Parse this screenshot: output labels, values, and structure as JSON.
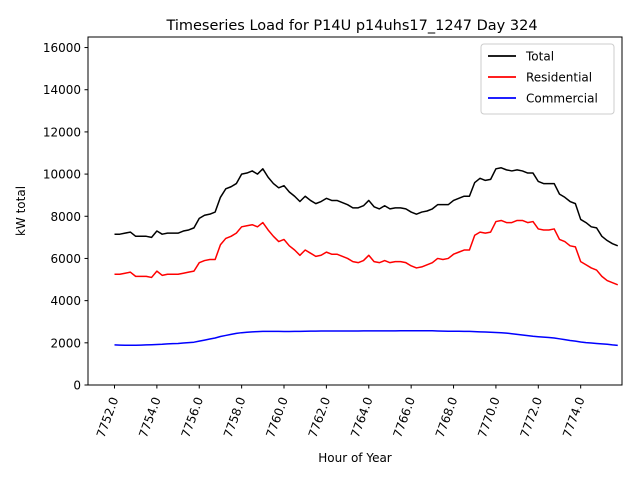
{
  "chart_data": {
    "type": "line",
    "title": "Timeseries Load for P14U p14uhs17_1247  Day 324",
    "xlabel": "Hour of Year",
    "ylabel": "kW total",
    "xlim": [
      7750.75,
      7775.95
    ],
    "ylim": [
      0,
      16500
    ],
    "x_ticks": [
      7752,
      7754,
      7756,
      7758,
      7760,
      7762,
      7764,
      7766,
      7768,
      7770,
      7772,
      7774
    ],
    "x_tick_labels": [
      "7752.0",
      "7754.0",
      "7756.0",
      "7758.0",
      "7760.0",
      "7762.0",
      "7764.0",
      "7766.0",
      "7768.0",
      "7770.0",
      "7772.0",
      "7774.0"
    ],
    "y_ticks": [
      0,
      2000,
      4000,
      6000,
      8000,
      10000,
      12000,
      14000,
      16000
    ],
    "y_tick_labels": [
      "0",
      "2000",
      "4000",
      "6000",
      "8000",
      "10000",
      "12000",
      "14000",
      "16000"
    ],
    "legend_position": "top-right",
    "x_start": 7752,
    "x_step": 0.25,
    "series": [
      {
        "name": "Total",
        "color": "#000000",
        "values": [
          7150,
          7150,
          7200,
          7250,
          7050,
          7050,
          7050,
          7000,
          7300,
          7150,
          7200,
          7200,
          7200,
          7300,
          7350,
          7450,
          7900,
          8050,
          8100,
          8200,
          8900,
          9300,
          9400,
          9550,
          10000,
          10050,
          10150,
          10000,
          10250,
          9850,
          9550,
          9350,
          9450,
          9150,
          8950,
          8700,
          8950,
          8750,
          8600,
          8700,
          8850,
          8750,
          8750,
          8650,
          8550,
          8400,
          8400,
          8500,
          8750,
          8450,
          8350,
          8500,
          8350,
          8400,
          8400,
          8350,
          8200,
          8100,
          8200,
          8250,
          8350,
          8550,
          8550,
          8550,
          8750,
          8850,
          8950,
          8950,
          9600,
          9800,
          9700,
          9750,
          10250,
          10300,
          10200,
          10150,
          10200,
          10150,
          10050,
          10050,
          9650,
          9550,
          9550,
          9550,
          9050,
          8900,
          8700,
          8600,
          7850,
          7700,
          7500,
          7450,
          7050,
          6850,
          6700,
          6600
        ]
      },
      {
        "name": "Residential",
        "color": "#ff0000",
        "values": [
          5250,
          5250,
          5300,
          5350,
          5150,
          5150,
          5150,
          5100,
          5400,
          5200,
          5250,
          5250,
          5250,
          5300,
          5350,
          5400,
          5800,
          5900,
          5950,
          5950,
          6650,
          6950,
          7050,
          7200,
          7500,
          7550,
          7600,
          7500,
          7700,
          7350,
          7050,
          6800,
          6900,
          6600,
          6400,
          6150,
          6400,
          6250,
          6100,
          6150,
          6300,
          6200,
          6200,
          6100,
          6000,
          5850,
          5800,
          5900,
          6150,
          5850,
          5800,
          5900,
          5800,
          5850,
          5850,
          5800,
          5650,
          5550,
          5600,
          5700,
          5800,
          6000,
          5950,
          6000,
          6200,
          6300,
          6400,
          6400,
          7100,
          7250,
          7200,
          7250,
          7750,
          7800,
          7700,
          7700,
          7800,
          7800,
          7700,
          7750,
          7400,
          7350,
          7350,
          7400,
          6900,
          6800,
          6600,
          6550,
          5850,
          5700,
          5550,
          5450,
          5150,
          4950,
          4850,
          4750
        ]
      },
      {
        "name": "Commercial",
        "color": "#0000ff",
        "values": [
          1900,
          1890,
          1885,
          1885,
          1885,
          1890,
          1900,
          1910,
          1920,
          1930,
          1950,
          1960,
          1970,
          1990,
          2010,
          2030,
          2080,
          2130,
          2180,
          2230,
          2300,
          2350,
          2400,
          2450,
          2480,
          2500,
          2520,
          2530,
          2540,
          2540,
          2540,
          2540,
          2535,
          2535,
          2540,
          2545,
          2550,
          2555,
          2555,
          2560,
          2560,
          2560,
          2560,
          2560,
          2560,
          2560,
          2560,
          2565,
          2565,
          2565,
          2565,
          2565,
          2565,
          2565,
          2570,
          2575,
          2575,
          2575,
          2575,
          2575,
          2570,
          2560,
          2555,
          2550,
          2550,
          2550,
          2545,
          2540,
          2530,
          2520,
          2510,
          2500,
          2490,
          2480,
          2460,
          2430,
          2400,
          2370,
          2340,
          2310,
          2290,
          2270,
          2250,
          2230,
          2190,
          2150,
          2110,
          2080,
          2040,
          2010,
          1990,
          1970,
          1950,
          1930,
          1900,
          1880
        ]
      }
    ]
  }
}
